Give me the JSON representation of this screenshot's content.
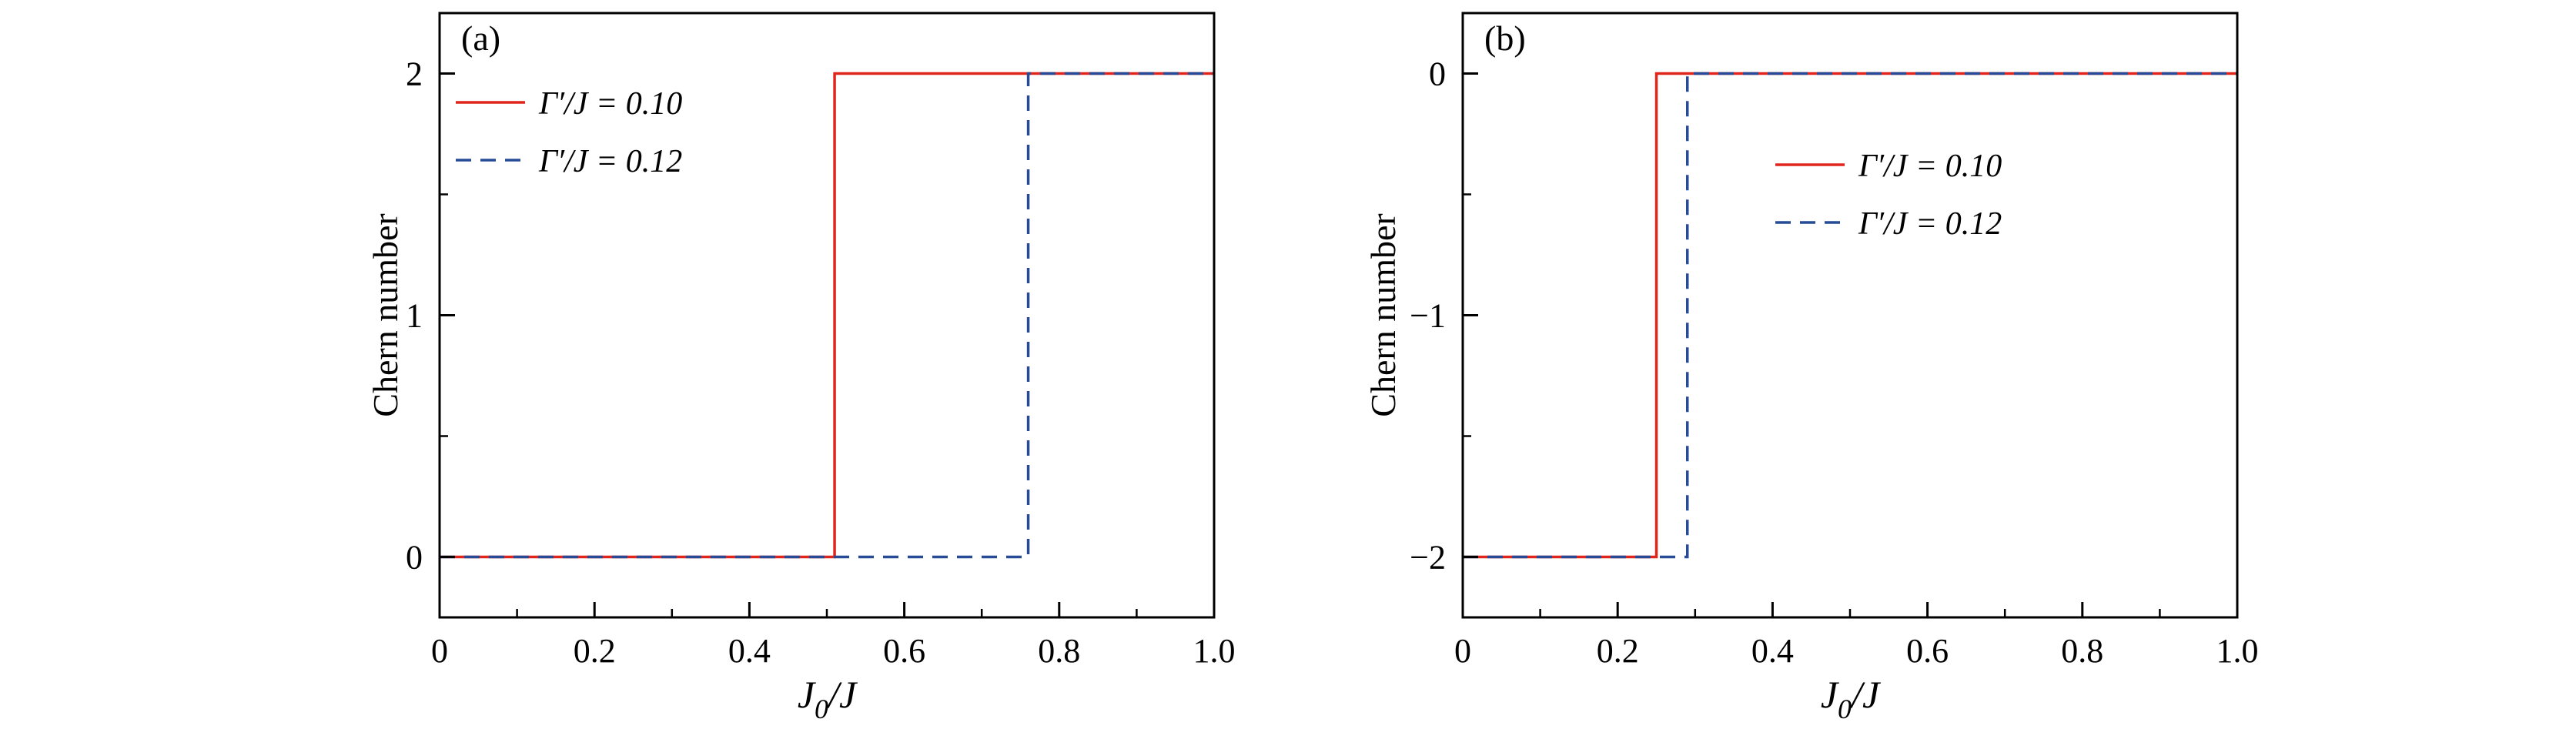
{
  "figure": {
    "background": "#ffffff",
    "panel_labels": [
      "(a)",
      "(b)"
    ]
  },
  "colors": {
    "series_red": "#e0251c",
    "series_blue": "#274b97",
    "axis": "#000000"
  },
  "chart_data": [
    {
      "type": "line",
      "panel_label": "(a)",
      "title": "",
      "xlabel": "J₀/J",
      "ylabel": "Chern number",
      "xlim": [
        0,
        1.0
      ],
      "ylim": [
        -0.25,
        2.25
      ],
      "xticks": [
        0,
        0.2,
        0.4,
        0.6,
        0.8,
        1.0
      ],
      "xtick_labels": [
        "0",
        "0.2",
        "0.4",
        "0.6",
        "0.8",
        "1.0"
      ],
      "yticks": [
        0,
        1,
        2
      ],
      "ytick_labels": [
        "0",
        "1",
        "2"
      ],
      "minor_xtick_step": 0.1,
      "minor_ytick_step": 0.5,
      "grid": false,
      "legend_position": "upper-left",
      "series": [
        {
          "name": "Γ′/J = 0.10",
          "color": "#e0251c",
          "line_style": "solid",
          "x": [
            0,
            0.51,
            0.51,
            1.0
          ],
          "y": [
            0,
            0,
            2,
            2
          ]
        },
        {
          "name": "Γ′/J = 0.12",
          "color": "#274b97",
          "line_style": "dashed",
          "x": [
            0,
            0.76,
            0.76,
            1.0
          ],
          "y": [
            0,
            0,
            2,
            2
          ]
        }
      ]
    },
    {
      "type": "line",
      "panel_label": "(b)",
      "title": "",
      "xlabel": "J₀/J",
      "ylabel": "Chern number",
      "xlim": [
        0,
        1.0
      ],
      "ylim": [
        -2.25,
        0.25
      ],
      "xticks": [
        0,
        0.2,
        0.4,
        0.6,
        0.8,
        1.0
      ],
      "xtick_labels": [
        "0",
        "0.2",
        "0.4",
        "0.6",
        "0.8",
        "1.0"
      ],
      "yticks": [
        -2,
        -1,
        0
      ],
      "ytick_labels": [
        "−2",
        "−1",
        "0"
      ],
      "minor_xtick_step": 0.1,
      "minor_ytick_step": 0.5,
      "grid": false,
      "legend_position": "center-right",
      "series": [
        {
          "name": "Γ′/J = 0.10",
          "color": "#e0251c",
          "line_style": "solid",
          "x": [
            0,
            0.25,
            0.25,
            1.0
          ],
          "y": [
            -2,
            -2,
            0,
            0
          ]
        },
        {
          "name": "Γ′/J = 0.12",
          "color": "#274b97",
          "line_style": "dashed",
          "x": [
            0,
            0.29,
            0.29,
            1.0
          ],
          "y": [
            -2,
            -2,
            0,
            0
          ]
        }
      ]
    }
  ]
}
